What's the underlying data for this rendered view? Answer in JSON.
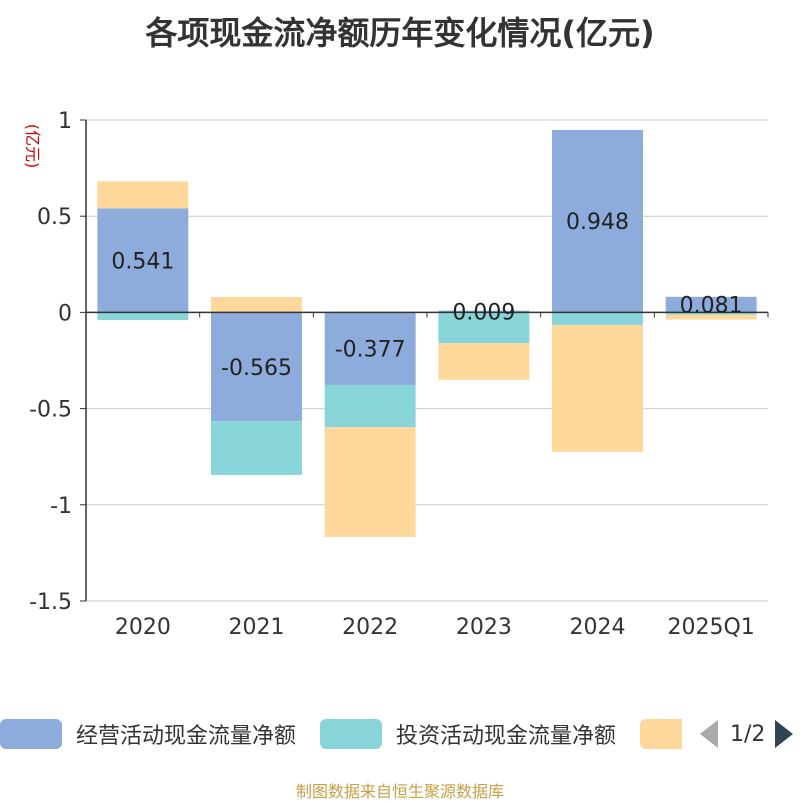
{
  "chart_data": {
    "type": "bar",
    "stacked": true,
    "title": "各项现金流净额历年变化情况(亿元)",
    "y_unit": "(亿元)",
    "categories": [
      "2020",
      "2021",
      "2022",
      "2023",
      "2024",
      "2025Q1"
    ],
    "ylim": [
      -1.5,
      1
    ],
    "yticks": [
      1,
      0.5,
      0,
      -0.5,
      -1,
      -1.5
    ],
    "ytick_labels": [
      "1",
      "0.5",
      "0",
      "-0.5",
      "-1",
      "-1.5"
    ],
    "grid": true,
    "series": [
      {
        "name": "经营活动现金流量净额",
        "color": "#8eacdb",
        "values": [
          0.541,
          -0.565,
          -0.377,
          0.009,
          0.948,
          0.081
        ]
      },
      {
        "name": "投资活动现金流量净额",
        "color": "#88d5d9",
        "values": [
          -0.04,
          -0.28,
          -0.22,
          -0.16,
          -0.065,
          -0.012
        ]
      },
      {
        "name": "",
        "color": "#fdd89a",
        "values": [
          0.14,
          0.08,
          -0.57,
          -0.19,
          -0.66,
          -0.025
        ]
      }
    ],
    "data_labels": [
      "0.541",
      "-0.565",
      "-0.377",
      "0.009",
      "0.948",
      "0.081"
    ],
    "legend_position": "bottom"
  },
  "legend": {
    "items": [
      "经营活动现金流量净额",
      "投资活动现金流量净额",
      ""
    ],
    "pager_text": "1/2"
  },
  "source_text": "制图数据来自恒生聚源数据库"
}
